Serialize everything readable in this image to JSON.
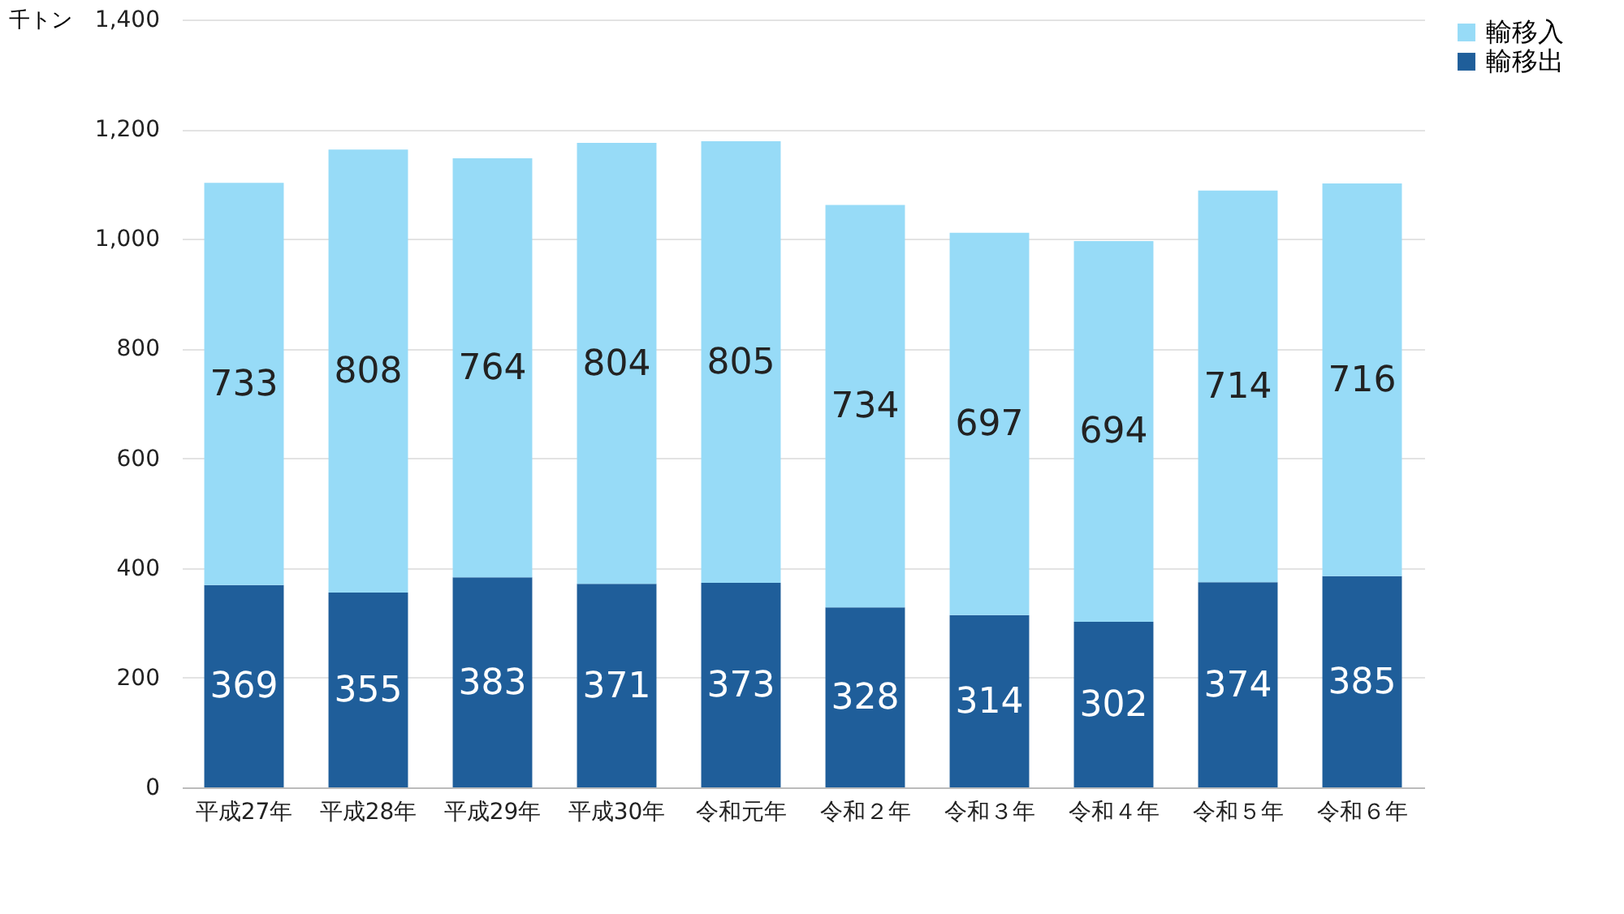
{
  "chart_data": {
    "type": "bar",
    "stacked": true,
    "ylabel": "千トン",
    "categories": [
      "平成27年",
      "平成28年",
      "平成29年",
      "平成30年",
      "令和元年",
      "令和２年",
      "令和３年",
      "令和４年",
      "令和５年",
      "令和６年"
    ],
    "series": [
      {
        "name": "輸移出",
        "color": "#1f5e9a",
        "values": [
          369,
          355,
          383,
          371,
          373,
          328,
          314,
          302,
          374,
          385
        ]
      },
      {
        "name": "輸移入",
        "color": "#97dbf7",
        "values": [
          733,
          808,
          764,
          804,
          805,
          734,
          697,
          694,
          714,
          716
        ]
      }
    ],
    "ylim": [
      0,
      1400
    ],
    "yticks": [
      0,
      200,
      400,
      600,
      800,
      {
        "value": 1000,
        "label": "1,000"
      },
      {
        "value": 1200,
        "label": "1,200"
      },
      {
        "value": 1400,
        "label": "1,400"
      }
    ],
    "grid": "y",
    "legend": "right",
    "data_labels": true
  }
}
